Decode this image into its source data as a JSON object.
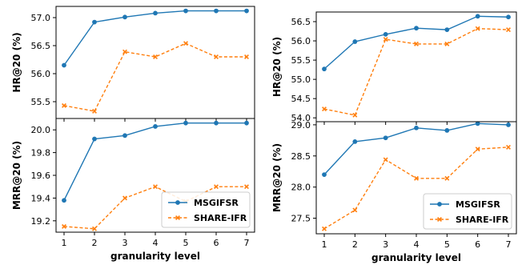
{
  "colors": {
    "series_1": "#1f77b4",
    "series_2": "#ff7f0e"
  },
  "chart_data": [
    {
      "type": "line",
      "panel": "top-left",
      "x": [
        1,
        2,
        3,
        4,
        5,
        6,
        7
      ],
      "series": [
        {
          "name": "MSGIFSR",
          "values": [
            56.15,
            56.92,
            57.01,
            57.08,
            57.12,
            57.12,
            57.12
          ]
        },
        {
          "name": "SHARE-IFR",
          "values": [
            55.43,
            55.33,
            56.39,
            56.3,
            56.54,
            56.3,
            56.3
          ]
        }
      ],
      "ylabel": "HR@20 (%)",
      "xlabel": "",
      "ylim": [
        55.2,
        57.2
      ],
      "yticks": [
        55.5,
        56.0,
        56.5,
        57.0
      ],
      "ytick_labels": [
        "55.5",
        "56.0",
        "56.5",
        "57.0"
      ],
      "xticks": [
        1,
        2,
        3,
        4,
        5,
        6,
        7
      ],
      "xtick_labels": [],
      "grid": false
    },
    {
      "type": "line",
      "panel": "top-right",
      "x": [
        1,
        2,
        3,
        4,
        5,
        6,
        7
      ],
      "series": [
        {
          "name": "MSGIFSR",
          "values": [
            55.27,
            55.98,
            56.17,
            56.33,
            56.29,
            56.64,
            56.62
          ]
        },
        {
          "name": "SHARE-IFR",
          "values": [
            54.23,
            54.07,
            56.04,
            55.92,
            55.92,
            56.32,
            56.29
          ]
        }
      ],
      "ylabel": "HR@20 (%)",
      "xlabel": "",
      "ylim": [
        53.9,
        56.75
      ],
      "yticks": [
        54.0,
        54.5,
        55.0,
        55.5,
        56.0,
        56.5
      ],
      "ytick_labels": [
        "54.0",
        "54.5",
        "55.0",
        "55.5",
        "56.0",
        "56.5"
      ],
      "xticks": [
        1,
        2,
        3,
        4,
        5,
        6,
        7
      ],
      "xtick_labels": [],
      "grid": false
    },
    {
      "type": "line",
      "panel": "bottom-left",
      "x": [
        1,
        2,
        3,
        4,
        5,
        6,
        7
      ],
      "series": [
        {
          "name": "MSGIFSR",
          "values": [
            19.38,
            19.92,
            19.95,
            20.03,
            20.06,
            20.06,
            20.06
          ]
        },
        {
          "name": "SHARE-IFR",
          "values": [
            19.15,
            19.13,
            19.4,
            19.5,
            19.37,
            19.5,
            19.5
          ]
        }
      ],
      "ylabel": "MRR@20 (%)",
      "xlabel": "granularity level",
      "ylim": [
        19.1,
        20.1
      ],
      "yticks": [
        19.2,
        19.4,
        19.6,
        19.8,
        20.0
      ],
      "ytick_labels": [
        "19.2",
        "19.4",
        "19.6",
        "19.8",
        "20.0"
      ],
      "xticks": [
        1,
        2,
        3,
        4,
        5,
        6,
        7
      ],
      "xtick_labels": [
        "1",
        "2",
        "3",
        "4",
        "5",
        "6",
        "7"
      ],
      "legend": "bottom-right",
      "grid": false
    },
    {
      "type": "line",
      "panel": "bottom-right",
      "x": [
        1,
        2,
        3,
        4,
        5,
        6,
        7
      ],
      "series": [
        {
          "name": "MSGIFSR",
          "values": [
            28.2,
            28.73,
            28.79,
            28.95,
            28.91,
            29.02,
            29.0
          ]
        },
        {
          "name": "SHARE-IFR",
          "values": [
            27.33,
            27.63,
            28.44,
            28.14,
            28.14,
            28.61,
            28.64
          ]
        }
      ],
      "ylabel": "MRR@20 (%)",
      "xlabel": "granularity level",
      "ylim": [
        27.25,
        29.05
      ],
      "yticks": [
        27.5,
        28.0,
        28.5,
        29.0
      ],
      "ytick_labels": [
        "27.5",
        "28.0",
        "28.5",
        "29.0"
      ],
      "xticks": [
        1,
        2,
        3,
        4,
        5,
        6,
        7
      ],
      "xtick_labels": [
        "1",
        "2",
        "3",
        "4",
        "5",
        "6",
        "7"
      ],
      "legend": "bottom-right",
      "grid": false
    }
  ]
}
